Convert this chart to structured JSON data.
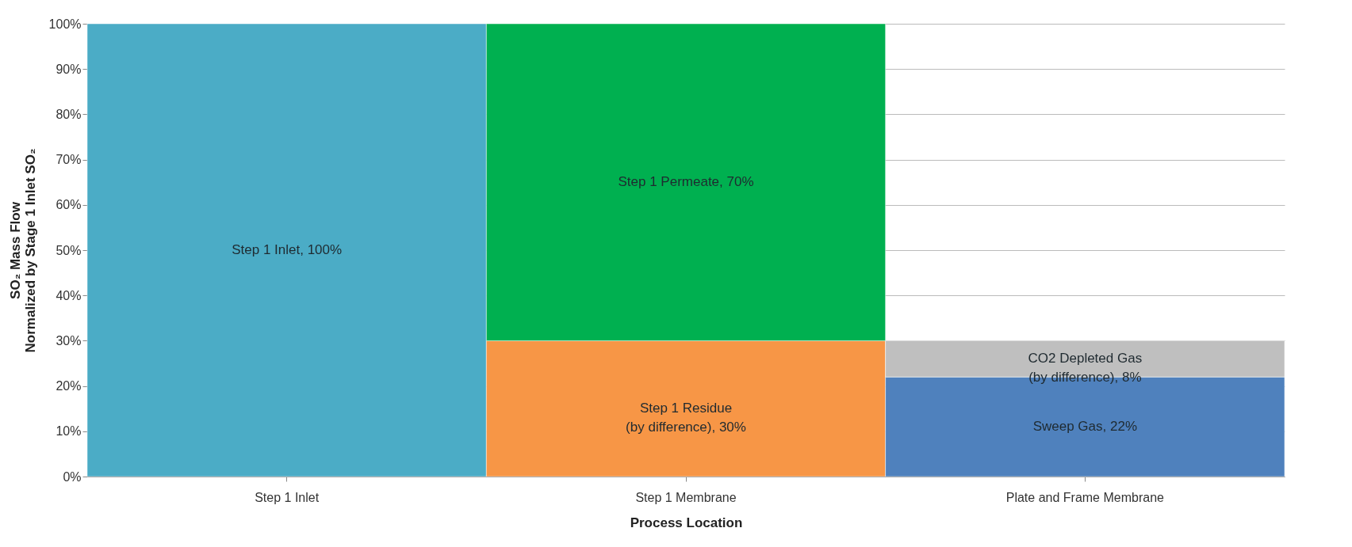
{
  "chart_data": {
    "type": "bar",
    "stacked": true,
    "grid": "y",
    "xlabel": "Process Location",
    "ylabel": "SO₂ Mass Flow\nNormalized by Stage 1 Inlet SO₂",
    "categories": [
      "Step 1 Inlet",
      "Step 1 Membrane",
      "Plate and Frame Membrane"
    ],
    "ylim": [
      0,
      100
    ],
    "yticks": [
      {
        "value": 0,
        "label": "0%"
      },
      {
        "value": 10,
        "label": "10%"
      },
      {
        "value": 20,
        "label": "20%"
      },
      {
        "value": 30,
        "label": "30%"
      },
      {
        "value": 40,
        "label": "40%"
      },
      {
        "value": 50,
        "label": "50%"
      },
      {
        "value": 60,
        "label": "60%"
      },
      {
        "value": 70,
        "label": "70%"
      },
      {
        "value": 80,
        "label": "80%"
      },
      {
        "value": 90,
        "label": "90%"
      },
      {
        "value": 100,
        "label": "100%"
      }
    ],
    "series": [
      {
        "color": "#4bacc6",
        "values": [
          100,
          null,
          null
        ],
        "value_labels": [
          "Step 1 Inlet, 100%",
          null,
          null
        ]
      },
      {
        "color": "#f79646",
        "values": [
          null,
          30,
          null
        ],
        "value_labels": [
          null,
          "Step 1 Residue\n(by difference), 30%",
          null
        ]
      },
      {
        "color": "#00b050",
        "values": [
          null,
          70,
          null
        ],
        "value_labels": [
          null,
          "Step 1 Permeate, 70%",
          null
        ]
      },
      {
        "color": "#4f81bd",
        "values": [
          null,
          null,
          22
        ],
        "value_labels": [
          null,
          null,
          "Sweep Gas, 22%"
        ]
      },
      {
        "color": "#bfbfbf",
        "values": [
          null,
          null,
          8
        ],
        "value_labels": [
          null,
          null,
          "CO2 Depleted Gas\n(by difference), 8%"
        ]
      }
    ]
  }
}
